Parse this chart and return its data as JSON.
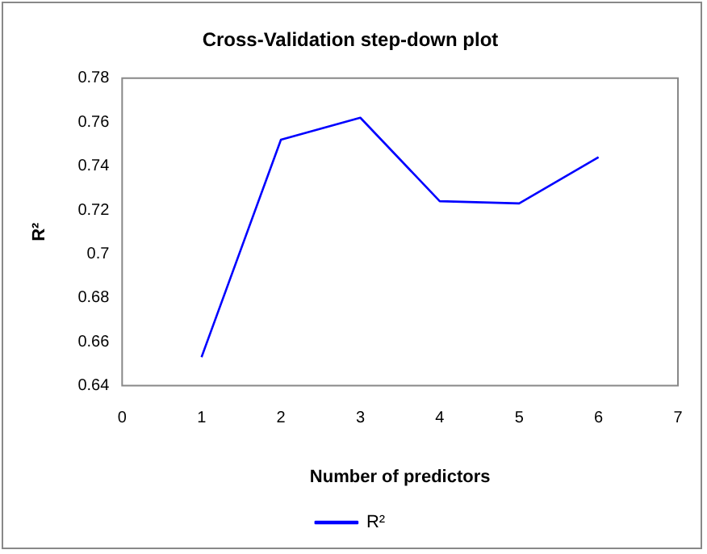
{
  "chart_data": {
    "type": "line",
    "title": "Cross-Validation step-down plot",
    "xlabel": "Number of predictors",
    "ylabel": "R²",
    "x": [
      1,
      2,
      3,
      4,
      5,
      6
    ],
    "series": [
      {
        "name": "R²",
        "color": "#0000ff",
        "values": [
          0.653,
          0.752,
          0.762,
          0.724,
          0.723,
          0.744
        ]
      }
    ],
    "xlim": [
      0,
      7
    ],
    "xticks": [
      0,
      1,
      2,
      3,
      4,
      5,
      6,
      7
    ],
    "ylim": [
      0.64,
      0.78
    ],
    "yticks": [
      0.64,
      0.66,
      0.68,
      0.7,
      0.72,
      0.74,
      0.76,
      0.78
    ],
    "grid": false,
    "legend": "bottom",
    "marker": "none",
    "line_style": "solid"
  }
}
